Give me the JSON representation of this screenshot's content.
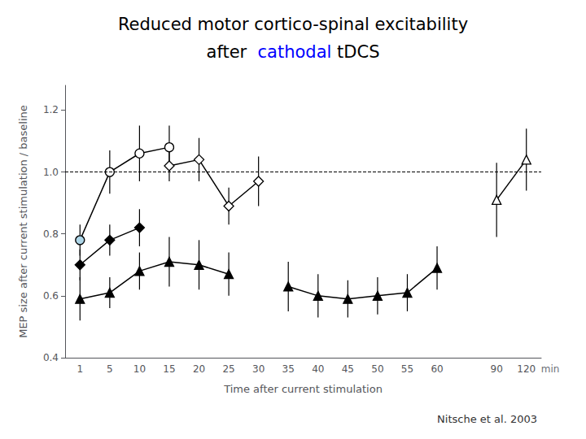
{
  "chart_data": {
    "type": "line",
    "title": "Reduced motor cortico-spinal excitability",
    "subtitle": "after  cathodal tDCS",
    "highlight": {
      "text": "cathodal",
      "color": "blue"
    },
    "xlabel": "Time after current stimulation",
    "ylabel": "MEP size after current stimulation / baseline",
    "annotations": [
      {
        "text": "min"
      },
      {
        "text": "Nitsche et al. 2003"
      }
    ],
    "categories": [
      "1",
      "5",
      "10",
      "15",
      "20",
      "25",
      "30",
      "35",
      "40",
      "45",
      "50",
      "55",
      "60",
      null,
      "90",
      "120"
    ],
    "series": [
      {
        "color": "#000000",
        "marker": "circle",
        "line_style": "solid",
        "values": [
          0.78,
          1.0,
          1.06,
          1.08,
          null,
          null,
          null,
          null,
          null,
          null,
          null,
          null,
          null,
          null,
          null,
          null
        ],
        "yerr": [
          0.05,
          0.07,
          0.09,
          0.07,
          null,
          null,
          null,
          null,
          null,
          null,
          null,
          null,
          null,
          null,
          null,
          null
        ],
        "colors": [
          "#aed6e8",
          "#ffffff",
          "#ffffff",
          "#ffffff",
          null,
          null,
          null,
          null,
          null,
          null,
          null,
          null,
          null,
          null,
          null,
          null
        ]
      },
      {
        "color": "#000000",
        "marker": "diamond",
        "line_style": "solid",
        "values": [
          0.7,
          0.78,
          0.82,
          null,
          null,
          null,
          null,
          null,
          null,
          null,
          null,
          null,
          null,
          null,
          null,
          null
        ],
        "yerr": [
          0.05,
          0.05,
          0.06,
          null,
          null,
          null,
          null,
          null,
          null,
          null,
          null,
          null,
          null,
          null,
          null,
          null
        ],
        "colors": [
          "#000000",
          "#000000",
          "#000000",
          null,
          null,
          null,
          null,
          null,
          null,
          null,
          null,
          null,
          null,
          null,
          null,
          null
        ]
      },
      {
        "color": "#000000",
        "marker": "diamond",
        "line_style": "solid",
        "values": [
          null,
          null,
          null,
          1.02,
          1.04,
          0.89,
          0.97,
          null,
          null,
          null,
          null,
          null,
          null,
          null,
          null,
          null
        ],
        "yerr": [
          null,
          null,
          null,
          0.05,
          0.07,
          0.06,
          0.08,
          null,
          null,
          null,
          null,
          null,
          null,
          null,
          null,
          null
        ],
        "colors": [
          null,
          null,
          null,
          "#ffffff",
          "#ffffff",
          "#ffffff",
          "#ffffff",
          null,
          null,
          null,
          null,
          null,
          null,
          null,
          null,
          null
        ]
      },
      {
        "color": "#000000",
        "marker": "triangle",
        "line_style": "solid",
        "values": [
          null,
          null,
          null,
          null,
          null,
          null,
          null,
          null,
          null,
          null,
          null,
          null,
          null,
          null,
          0.91,
          1.04
        ],
        "yerr": [
          null,
          null,
          null,
          null,
          null,
          null,
          null,
          null,
          null,
          null,
          null,
          null,
          null,
          null,
          0.12,
          0.1
        ],
        "colors": [
          null,
          null,
          null,
          null,
          null,
          null,
          null,
          null,
          null,
          null,
          null,
          null,
          null,
          null,
          "#ffffff",
          "#ffffff"
        ]
      },
      {
        "color": "#000000",
        "marker": "triangle",
        "line_style": "solid",
        "values": [
          0.59,
          0.61,
          0.68,
          0.71,
          0.7,
          0.67,
          null,
          0.63,
          0.6,
          0.59,
          0.6,
          0.61,
          0.69,
          null,
          null,
          null
        ],
        "yerr": [
          0.07,
          0.05,
          0.06,
          0.08,
          0.08,
          0.07,
          null,
          0.08,
          0.07,
          0.06,
          0.06,
          0.06,
          0.07,
          null,
          null,
          null
        ],
        "colors": [
          "#000000",
          "#000000",
          "#000000",
          "#000000",
          "#000000",
          "#000000",
          null,
          "#000000",
          "#000000",
          "#000000",
          "#000000",
          "#000000",
          "#000000",
          null,
          null,
          null
        ]
      }
    ],
    "reference_lines": [
      {
        "y": 1.0,
        "line_style": "dashed",
        "color": "#000000"
      }
    ],
    "ylim": [
      0.4,
      1.28
    ],
    "yticks": [
      0.4,
      0.6,
      0.8,
      {
        "value": 1.0,
        "label": "1.0"
      },
      1.2
    ],
    "grid": false
  }
}
